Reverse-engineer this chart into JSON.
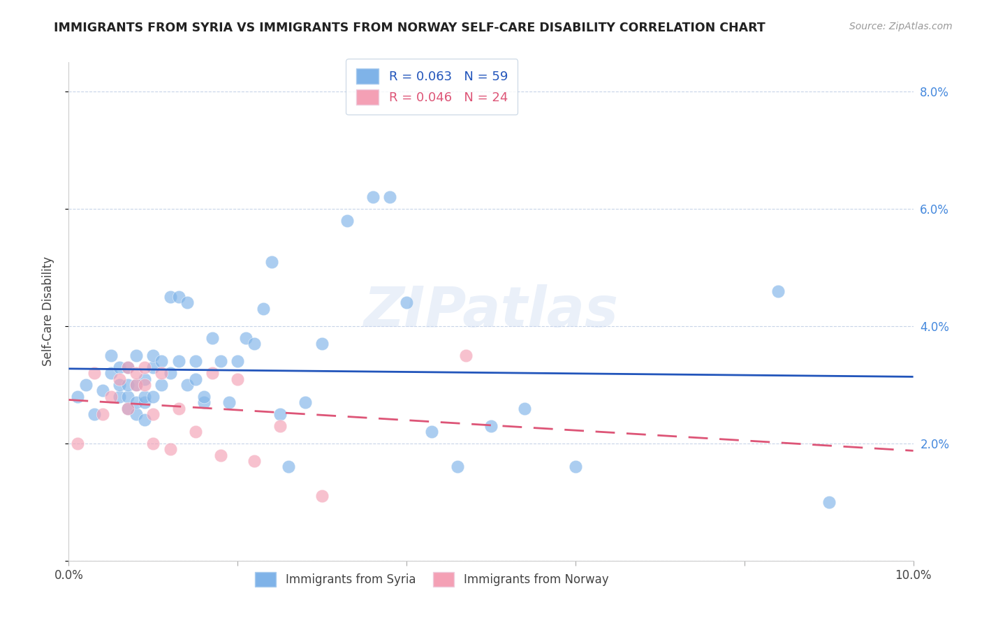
{
  "title": "IMMIGRANTS FROM SYRIA VS IMMIGRANTS FROM NORWAY SELF-CARE DISABILITY CORRELATION CHART",
  "source": "Source: ZipAtlas.com",
  "ylabel": "Self-Care Disability",
  "xlim": [
    0.0,
    0.1
  ],
  "ylim": [
    0.0,
    0.085
  ],
  "color_syria": "#7fb3e8",
  "color_norway": "#f4a0b5",
  "trendline_syria_color": "#2255bb",
  "trendline_norway_color": "#dd5577",
  "background_color": "#ffffff",
  "grid_color": "#c8d4e8",
  "title_color": "#222222",
  "tick_color_right": "#4488dd",
  "watermark": "ZIPatlas",
  "syria_x": [
    0.001,
    0.002,
    0.003,
    0.004,
    0.005,
    0.005,
    0.006,
    0.006,
    0.006,
    0.007,
    0.007,
    0.007,
    0.007,
    0.008,
    0.008,
    0.008,
    0.008,
    0.009,
    0.009,
    0.009,
    0.009,
    0.01,
    0.01,
    0.01,
    0.011,
    0.011,
    0.012,
    0.012,
    0.013,
    0.013,
    0.014,
    0.014,
    0.015,
    0.015,
    0.016,
    0.016,
    0.017,
    0.018,
    0.019,
    0.02,
    0.021,
    0.022,
    0.023,
    0.024,
    0.025,
    0.026,
    0.028,
    0.03,
    0.033,
    0.036,
    0.038,
    0.04,
    0.043,
    0.046,
    0.05,
    0.054,
    0.06,
    0.084,
    0.09
  ],
  "syria_y": [
    0.028,
    0.03,
    0.025,
    0.029,
    0.032,
    0.035,
    0.028,
    0.03,
    0.033,
    0.026,
    0.028,
    0.03,
    0.033,
    0.025,
    0.027,
    0.03,
    0.035,
    0.024,
    0.027,
    0.028,
    0.031,
    0.028,
    0.033,
    0.035,
    0.03,
    0.034,
    0.032,
    0.045,
    0.034,
    0.045,
    0.03,
    0.044,
    0.031,
    0.034,
    0.027,
    0.028,
    0.038,
    0.034,
    0.027,
    0.034,
    0.038,
    0.037,
    0.043,
    0.051,
    0.025,
    0.016,
    0.027,
    0.037,
    0.058,
    0.062,
    0.062,
    0.044,
    0.022,
    0.016,
    0.023,
    0.026,
    0.016,
    0.046,
    0.01
  ],
  "norway_x": [
    0.001,
    0.003,
    0.004,
    0.005,
    0.006,
    0.007,
    0.007,
    0.008,
    0.008,
    0.009,
    0.009,
    0.01,
    0.01,
    0.011,
    0.012,
    0.013,
    0.015,
    0.017,
    0.018,
    0.02,
    0.022,
    0.025,
    0.03,
    0.047
  ],
  "norway_y": [
    0.02,
    0.032,
    0.025,
    0.028,
    0.031,
    0.033,
    0.026,
    0.03,
    0.032,
    0.03,
    0.033,
    0.025,
    0.02,
    0.032,
    0.019,
    0.026,
    0.022,
    0.032,
    0.018,
    0.031,
    0.017,
    0.023,
    0.011,
    0.035
  ]
}
